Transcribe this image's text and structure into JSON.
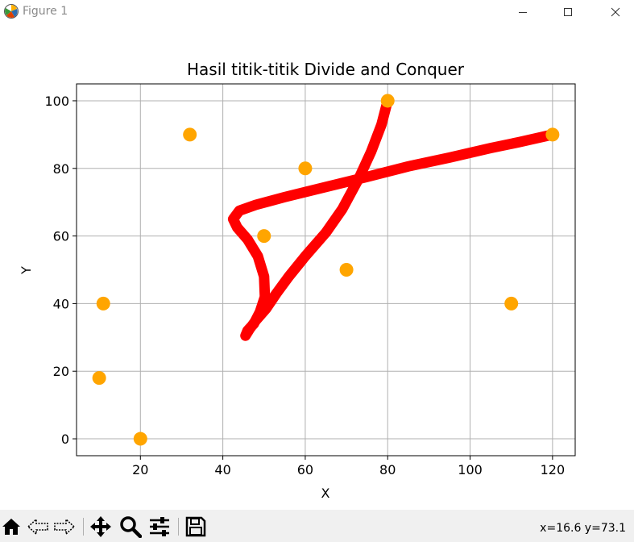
{
  "window": {
    "title": "Figure 1",
    "app_icon": "matplotlib-icon",
    "controls": [
      "minimize-icon",
      "maximize-icon",
      "close-icon"
    ]
  },
  "toolbar": {
    "buttons": [
      {
        "name": "home-button",
        "icon": "home-icon"
      },
      {
        "name": "back-button",
        "icon": "arrow-left-icon"
      },
      {
        "name": "forward-button",
        "icon": "arrow-right-icon"
      },
      {
        "name": "pan-button",
        "icon": "move-icon"
      },
      {
        "name": "zoom-button",
        "icon": "magnifier-icon"
      },
      {
        "name": "configure-subplots-button",
        "icon": "sliders-icon"
      },
      {
        "name": "save-button",
        "icon": "floppy-icon"
      }
    ],
    "coords": "x=16.6 y=73.1"
  },
  "chart_data": {
    "type": "scatter",
    "title": "Hasil titik-titik Divide and Conquer",
    "xlabel": "X",
    "ylabel": "Y",
    "xlim": [
      4.5,
      125.5
    ],
    "ylim": [
      -5,
      105
    ],
    "xticks": [
      20,
      40,
      60,
      80,
      100,
      120
    ],
    "yticks": [
      0,
      20,
      40,
      60,
      80,
      100
    ],
    "grid": true,
    "points_color": "#ffa500",
    "curve_color": "#ff0000",
    "points": [
      {
        "x": 20,
        "y": 0
      },
      {
        "x": 10,
        "y": 18
      },
      {
        "x": 11,
        "y": 40
      },
      {
        "x": 32,
        "y": 90
      },
      {
        "x": 50,
        "y": 60
      },
      {
        "x": 60,
        "y": 80
      },
      {
        "x": 70,
        "y": 50
      },
      {
        "x": 80,
        "y": 100
      },
      {
        "x": 110,
        "y": 40
      },
      {
        "x": 120,
        "y": 90
      }
    ],
    "curve": [
      [
        80,
        100
      ],
      [
        78.5,
        93
      ],
      [
        76,
        85
      ],
      [
        73,
        77
      ],
      [
        69,
        68
      ],
      [
        65,
        61
      ],
      [
        60,
        54
      ],
      [
        56,
        48
      ],
      [
        53,
        43
      ],
      [
        50.5,
        38.5
      ],
      [
        48,
        35
      ],
      [
        46.5,
        32.5
      ],
      [
        45.5,
        30.5
      ],
      [
        46,
        32
      ],
      [
        47.5,
        34
      ],
      [
        49,
        37.5
      ],
      [
        50.2,
        42
      ],
      [
        50,
        48
      ],
      [
        48.5,
        54
      ],
      [
        46,
        59
      ],
      [
        43.5,
        62.5
      ],
      [
        42.5,
        65
      ],
      [
        44,
        67.5
      ],
      [
        48,
        69.2
      ],
      [
        55,
        71.5
      ],
      [
        65,
        74.5
      ],
      [
        75,
        77.5
      ],
      [
        85,
        80.6
      ],
      [
        95,
        83.2
      ],
      [
        105,
        86
      ],
      [
        112,
        87.8
      ],
      [
        120,
        90
      ]
    ]
  }
}
